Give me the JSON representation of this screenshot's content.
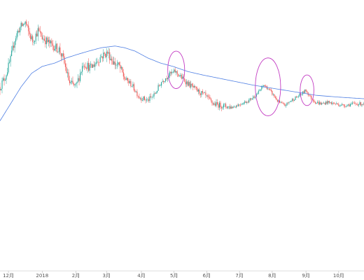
{
  "chart_data": {
    "type": "candlestick",
    "title": "",
    "xlabel": "",
    "ylabel": "",
    "grid": false,
    "legend": "none",
    "colors": {
      "up": "#26a69a",
      "down": "#ef5350",
      "moving_average": "#4f7fe3",
      "annotation": "#c33cc3",
      "axis": "#bbbbbb"
    },
    "x_range": [
      0,
      345
    ],
    "y_range": [
      0,
      100
    ],
    "x_ticks": [
      {
        "label": "12月",
        "x": 8
      },
      {
        "label": "2018",
        "x": 40
      },
      {
        "label": "2月",
        "x": 72
      },
      {
        "label": "3月",
        "x": 101
      },
      {
        "label": "4月",
        "x": 134
      },
      {
        "label": "5月",
        "x": 165
      },
      {
        "label": "6月",
        "x": 196
      },
      {
        "label": "7月",
        "x": 227
      },
      {
        "label": "8月",
        "x": 258
      },
      {
        "label": "9月",
        "x": 290
      },
      {
        "label": "10月",
        "x": 321
      }
    ],
    "price_keyframes": [
      [
        0,
        58
      ],
      [
        5,
        64
      ],
      [
        10,
        74
      ],
      [
        14,
        86
      ],
      [
        18,
        92
      ],
      [
        24,
        96
      ],
      [
        27,
        90
      ],
      [
        31,
        85
      ],
      [
        36,
        91
      ],
      [
        40,
        87
      ],
      [
        48,
        83
      ],
      [
        56,
        80
      ],
      [
        60,
        74
      ],
      [
        66,
        60
      ],
      [
        72,
        58
      ],
      [
        79,
        72
      ],
      [
        86,
        69
      ],
      [
        96,
        76
      ],
      [
        102,
        78
      ],
      [
        108,
        72
      ],
      [
        113,
        70
      ],
      [
        118,
        63
      ],
      [
        125,
        59
      ],
      [
        132,
        52
      ],
      [
        140,
        50
      ],
      [
        146,
        53
      ],
      [
        153,
        61
      ],
      [
        160,
        65
      ],
      [
        166,
        67
      ],
      [
        171,
        64
      ],
      [
        178,
        60
      ],
      [
        186,
        56
      ],
      [
        194,
        53
      ],
      [
        202,
        48
      ],
      [
        210,
        47
      ],
      [
        220,
        46
      ],
      [
        228,
        48
      ],
      [
        236,
        50
      ],
      [
        244,
        54
      ],
      [
        250,
        59
      ],
      [
        254,
        57
      ],
      [
        258,
        54
      ],
      [
        264,
        49
      ],
      [
        270,
        47
      ],
      [
        276,
        50
      ],
      [
        284,
        53
      ],
      [
        290,
        56
      ],
      [
        294,
        52
      ],
      [
        299,
        49
      ],
      [
        305,
        48
      ],
      [
        310,
        49
      ],
      [
        318,
        48
      ],
      [
        326,
        47
      ],
      [
        335,
        48
      ],
      [
        345,
        48
      ]
    ],
    "ma_keyframes": [
      [
        0,
        38
      ],
      [
        10,
        48
      ],
      [
        20,
        58
      ],
      [
        30,
        66
      ],
      [
        40,
        70
      ],
      [
        52,
        72
      ],
      [
        63,
        75
      ],
      [
        73,
        77
      ],
      [
        84,
        79
      ],
      [
        96,
        81
      ],
      [
        109,
        82
      ],
      [
        118,
        81
      ],
      [
        128,
        79
      ],
      [
        140,
        75
      ],
      [
        152,
        72
      ],
      [
        164,
        70
      ],
      [
        178,
        67
      ],
      [
        192,
        65
      ],
      [
        208,
        63
      ],
      [
        224,
        61
      ],
      [
        240,
        59
      ],
      [
        260,
        57
      ],
      [
        280,
        55
      ],
      [
        300,
        53
      ],
      [
        320,
        52
      ],
      [
        345,
        51
      ]
    ],
    "annotations": [
      {
        "x": 167,
        "y": 68,
        "rx": 8,
        "ry": 11
      },
      {
        "x": 254,
        "y": 58,
        "rx": 12,
        "ry": 17
      },
      {
        "x": 291,
        "y": 56,
        "rx": 6.5,
        "ry": 9
      }
    ]
  }
}
